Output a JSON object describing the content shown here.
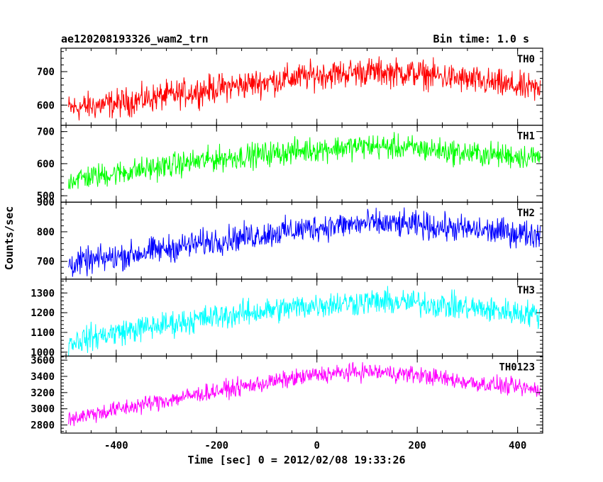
{
  "chart_data": {
    "type": "line",
    "title": "ae120208193326_wam2_trn",
    "subtitle": "Bin time: 1.0 s",
    "xlabel": "Time [sec] 0 = 2012/02/08 19:33:26",
    "ylabel": "Counts/sec",
    "xlim": [
      -510,
      450
    ],
    "x_ticks": [
      -400,
      -200,
      0,
      200,
      400
    ],
    "x_data_range": [
      -495,
      445
    ],
    "series": [
      {
        "name": "TH0",
        "color": "#ff0000",
        "ylim": [
          540,
          770
        ],
        "y_ticks": [
          600,
          700
        ],
        "trend": [
          [
            -495,
            590
          ],
          [
            -400,
            605
          ],
          [
            -200,
            650
          ],
          [
            0,
            690
          ],
          [
            100,
            700
          ],
          [
            200,
            695
          ],
          [
            300,
            675
          ],
          [
            445,
            645
          ]
        ],
        "noise": 42
      },
      {
        "name": "TH1",
        "color": "#00ff00",
        "ylim": [
          480,
          720
        ],
        "y_ticks": [
          500,
          600,
          700
        ],
        "trend": [
          [
            -495,
            550
          ],
          [
            -400,
            570
          ],
          [
            -200,
            615
          ],
          [
            0,
            645
          ],
          [
            100,
            655
          ],
          [
            200,
            648
          ],
          [
            300,
            632
          ],
          [
            445,
            620
          ]
        ],
        "noise": 38
      },
      {
        "name": "TH2",
        "color": "#0000ff",
        "ylim": [
          640,
          900
        ],
        "y_ticks": [
          700,
          800,
          900
        ],
        "trend": [
          [
            -495,
            690
          ],
          [
            -400,
            715
          ],
          [
            -200,
            770
          ],
          [
            0,
            815
          ],
          [
            100,
            828
          ],
          [
            200,
            822
          ],
          [
            300,
            808
          ],
          [
            445,
            790
          ]
        ],
        "noise": 45
      },
      {
        "name": "TH3",
        "color": "#00ffff",
        "ylim": [
          980,
          1370
        ],
        "y_ticks": [
          1000,
          1100,
          1200,
          1300
        ],
        "trend": [
          [
            -495,
            1050
          ],
          [
            -400,
            1100
          ],
          [
            -200,
            1180
          ],
          [
            0,
            1240
          ],
          [
            100,
            1255
          ],
          [
            200,
            1250
          ],
          [
            300,
            1225
          ],
          [
            445,
            1190
          ]
        ],
        "noise": 65
      },
      {
        "name": "TH0123",
        "color": "#ff00ff",
        "ylim": [
          2700,
          3650
        ],
        "y_ticks": [
          2800,
          3000,
          3200,
          3400,
          3600
        ],
        "trend": [
          [
            -495,
            2880
          ],
          [
            -400,
            2990
          ],
          [
            -200,
            3220
          ],
          [
            0,
            3420
          ],
          [
            100,
            3460
          ],
          [
            200,
            3420
          ],
          [
            300,
            3330
          ],
          [
            445,
            3230
          ]
        ],
        "noise": 105
      }
    ]
  }
}
